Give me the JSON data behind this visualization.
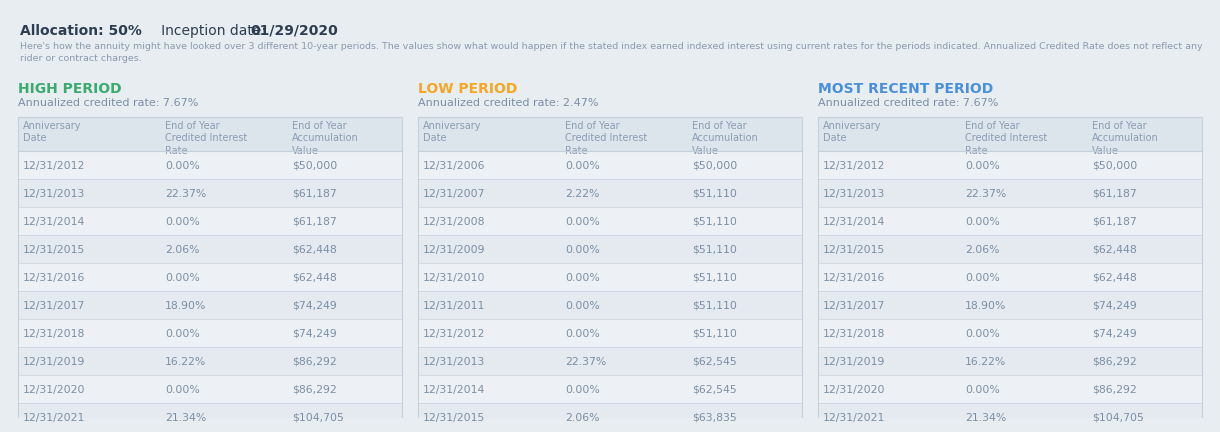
{
  "bg_color": "#e8edf2",
  "header_bg": "#dce4ec",
  "allocation_text_parts": [
    {
      "text": "Allocation: 50%",
      "bold": true
    },
    {
      "text": "   Inception date: ",
      "bold": false
    },
    {
      "text": "01/29/2020",
      "bold": true
    }
  ],
  "subtitle": "Here's how the annuity might have looked over 3 different 10-year periods. The values show what would happen if the stated index earned indexed interest using current rates for the periods indicated. Annualized Credited Rate does not reflect any\nrider or contract charges.",
  "periods": [
    {
      "title": "HIGH PERIOD",
      "title_color": "#3aaa6e",
      "rate_label": "Annualized credited rate: 7.67%",
      "rows": [
        [
          "12/31/2012",
          "0.00%",
          "$50,000"
        ],
        [
          "12/31/2013",
          "22.37%",
          "$61,187"
        ],
        [
          "12/31/2014",
          "0.00%",
          "$61,187"
        ],
        [
          "12/31/2015",
          "2.06%",
          "$62,448"
        ],
        [
          "12/31/2016",
          "0.00%",
          "$62,448"
        ],
        [
          "12/31/2017",
          "18.90%",
          "$74,249"
        ],
        [
          "12/31/2018",
          "0.00%",
          "$74,249"
        ],
        [
          "12/31/2019",
          "16.22%",
          "$86,292"
        ],
        [
          "12/31/2020",
          "0.00%",
          "$86,292"
        ],
        [
          "12/31/2021",
          "21.34%",
          "$104,705"
        ]
      ]
    },
    {
      "title": "LOW PERIOD",
      "title_color": "#f5a623",
      "rate_label": "Annualized credited rate: 2.47%",
      "rows": [
        [
          "12/31/2006",
          "0.00%",
          "$50,000"
        ],
        [
          "12/31/2007",
          "2.22%",
          "$51,110"
        ],
        [
          "12/31/2008",
          "0.00%",
          "$51,110"
        ],
        [
          "12/31/2009",
          "0.00%",
          "$51,110"
        ],
        [
          "12/31/2010",
          "0.00%",
          "$51,110"
        ],
        [
          "12/31/2011",
          "0.00%",
          "$51,110"
        ],
        [
          "12/31/2012",
          "0.00%",
          "$51,110"
        ],
        [
          "12/31/2013",
          "22.37%",
          "$62,545"
        ],
        [
          "12/31/2014",
          "0.00%",
          "$62,545"
        ],
        [
          "12/31/2015",
          "2.06%",
          "$63,835"
        ]
      ]
    },
    {
      "title": "MOST RECENT PERIOD",
      "title_color": "#4a90d9",
      "rate_label": "Annualized credited rate: 7.67%",
      "rows": [
        [
          "12/31/2012",
          "0.00%",
          "$50,000"
        ],
        [
          "12/31/2013",
          "22.37%",
          "$61,187"
        ],
        [
          "12/31/2014",
          "0.00%",
          "$61,187"
        ],
        [
          "12/31/2015",
          "2.06%",
          "$62,448"
        ],
        [
          "12/31/2016",
          "0.00%",
          "$62,448"
        ],
        [
          "12/31/2017",
          "18.90%",
          "$74,249"
        ],
        [
          "12/31/2018",
          "0.00%",
          "$74,249"
        ],
        [
          "12/31/2019",
          "16.22%",
          "$86,292"
        ],
        [
          "12/31/2020",
          "0.00%",
          "$86,292"
        ],
        [
          "12/31/2021",
          "21.34%",
          "$104,705"
        ]
      ]
    }
  ],
  "col_headers": [
    "Anniversary\nDate",
    "End of Year\nCredited Interest\nRate",
    "End of Year\nAccumulation\nValue"
  ],
  "text_color": "#7a8fa6",
  "header_text_color": "#8a9db5",
  "row_colors": [
    "#edf1f6",
    "#e4eaf0"
  ],
  "alloc_color": "#2c3e50",
  "subtitle_color": "#8a9ab0",
  "divider_color": "#c5d0db"
}
